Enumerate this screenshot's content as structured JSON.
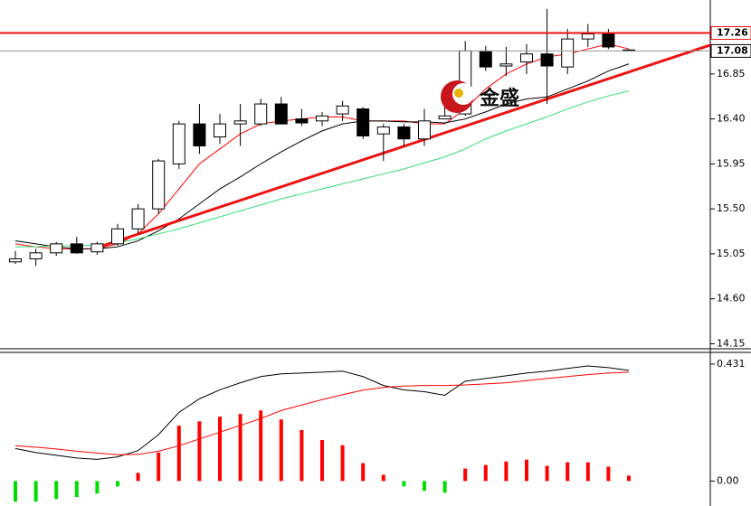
{
  "chart_data": [
    {
      "type": "candlestick",
      "open": [
        14.97,
        15.0,
        15.06,
        15.15,
        15.07,
        15.15,
        15.3,
        15.5,
        15.95,
        16.35,
        16.22,
        16.35,
        16.35,
        16.55,
        16.4,
        16.38,
        16.45,
        16.5,
        16.25,
        16.32,
        16.2,
        16.4,
        16.45,
        17.08,
        16.93,
        16.97,
        17.05,
        16.92,
        17.2,
        17.25,
        17.09
      ],
      "high": [
        15.08,
        15.1,
        15.17,
        15.22,
        15.17,
        15.35,
        15.55,
        16.0,
        16.38,
        16.55,
        16.45,
        16.55,
        16.6,
        16.62,
        16.5,
        16.47,
        16.58,
        16.52,
        16.35,
        16.35,
        16.5,
        16.55,
        17.18,
        17.13,
        17.12,
        17.15,
        17.5,
        17.3,
        17.35,
        17.3,
        17.1
      ],
      "low": [
        14.95,
        14.93,
        15.03,
        15.05,
        15.04,
        15.13,
        15.25,
        15.45,
        15.9,
        16.05,
        16.15,
        16.13,
        16.33,
        16.35,
        16.33,
        16.33,
        16.38,
        16.2,
        15.98,
        16.13,
        16.13,
        16.4,
        16.43,
        16.88,
        16.83,
        16.85,
        16.55,
        16.85,
        17.12,
        17.1,
        17.08
      ],
      "close": [
        15.0,
        15.06,
        15.15,
        15.06,
        15.15,
        15.3,
        15.5,
        15.98,
        16.35,
        16.13,
        16.35,
        16.38,
        16.55,
        16.35,
        16.36,
        16.43,
        16.53,
        16.23,
        16.32,
        16.2,
        16.38,
        16.43,
        17.08,
        16.92,
        16.95,
        17.05,
        16.93,
        17.2,
        17.25,
        17.12,
        17.08
      ],
      "up_color": "#ffffff",
      "down_color": "#000000",
      "series": [
        {
          "color": "#ff0000",
          "values": [
            15.15,
            15.12,
            15.1,
            15.1,
            15.1,
            15.15,
            15.25,
            15.45,
            15.7,
            15.95,
            16.1,
            16.25,
            16.35,
            16.38,
            16.4,
            16.42,
            16.42,
            16.38,
            16.38,
            16.38,
            16.35,
            16.35,
            16.5,
            16.7,
            16.85,
            16.95,
            17.02,
            17.05,
            17.1,
            17.15,
            17.1
          ]
        },
        {
          "color": "#000000",
          "values": [
            15.18,
            15.15,
            15.12,
            15.1,
            15.1,
            15.12,
            15.18,
            15.28,
            15.4,
            15.55,
            15.7,
            15.82,
            15.95,
            16.07,
            16.18,
            16.28,
            16.35,
            16.38,
            16.38,
            16.37,
            16.37,
            16.36,
            16.4,
            16.47,
            16.55,
            16.6,
            16.62,
            16.7,
            16.78,
            16.88,
            16.95
          ]
        },
        {
          "color": "#33dd77",
          "values": [
            15.12,
            15.12,
            15.13,
            15.13,
            15.14,
            15.16,
            15.2,
            15.25,
            15.3,
            15.36,
            15.42,
            15.48,
            15.54,
            15.6,
            15.65,
            15.7,
            15.75,
            15.8,
            15.85,
            15.9,
            15.96,
            16.02,
            16.1,
            16.2,
            16.28,
            16.35,
            16.42,
            16.5,
            16.57,
            16.63,
            16.68
          ]
        }
      ],
      "trendline": {
        "color": "#ee1111",
        "x": [
          3.67,
          34
        ],
        "values": [
          15.09,
          17.14
        ]
      },
      "hlines": [
        {
          "value": 17.26,
          "color": "#ee1111"
        },
        {
          "value": 17.08,
          "color": "#999999"
        }
      ],
      "annotations": [
        "金盛"
      ],
      "ylim": [
        14.1,
        17.59
      ],
      "yticks": [
        {
          "value": 16.85,
          "label": "16.85"
        },
        {
          "value": 16.4,
          "label": "16.40"
        },
        15.95,
        {
          "value": 15.5,
          "label": "15.50"
        },
        15.05,
        {
          "value": 14.6,
          "label": "14.60"
        },
        14.15
      ]
    },
    {
      "type": "macd",
      "values": [
        -0.076,
        -0.076,
        -0.066,
        -0.059,
        -0.046,
        -0.02,
        0.03,
        0.105,
        0.204,
        0.22,
        0.237,
        0.247,
        0.26,
        0.227,
        0.188,
        0.151,
        0.132,
        0.066,
        0.023,
        -0.02,
        -0.036,
        -0.043,
        0.046,
        0.059,
        0.072,
        0.079,
        0.056,
        0.069,
        0.069,
        0.053,
        0.02
      ],
      "up_color": "#ff0000",
      "down_color": "#00dd00",
      "series": [
        {
          "color": "#000000",
          "values": [
            0.12,
            0.105,
            0.095,
            0.085,
            0.08,
            0.089,
            0.112,
            0.171,
            0.253,
            0.303,
            0.336,
            0.362,
            0.385,
            0.395,
            0.398,
            0.401,
            0.405,
            0.385,
            0.352,
            0.336,
            0.329,
            0.316,
            0.368,
            0.378,
            0.388,
            0.398,
            0.405,
            0.415,
            0.424,
            0.418,
            0.408
          ]
        },
        {
          "color": "#ff0000",
          "values": [
            0.13,
            0.125,
            0.118,
            0.11,
            0.103,
            0.097,
            0.098,
            0.11,
            0.13,
            0.155,
            0.18,
            0.205,
            0.23,
            0.26,
            0.28,
            0.3,
            0.318,
            0.335,
            0.345,
            0.35,
            0.352,
            0.352,
            0.354,
            0.358,
            0.362,
            0.37,
            0.378,
            0.385,
            0.392,
            0.398,
            0.401
          ]
        }
      ],
      "ylim": [
        -0.092,
        0.474
      ],
      "yticks": [
        0.431,
        {
          "value": 0,
          "label": "0.00"
        }
      ]
    }
  ]
}
